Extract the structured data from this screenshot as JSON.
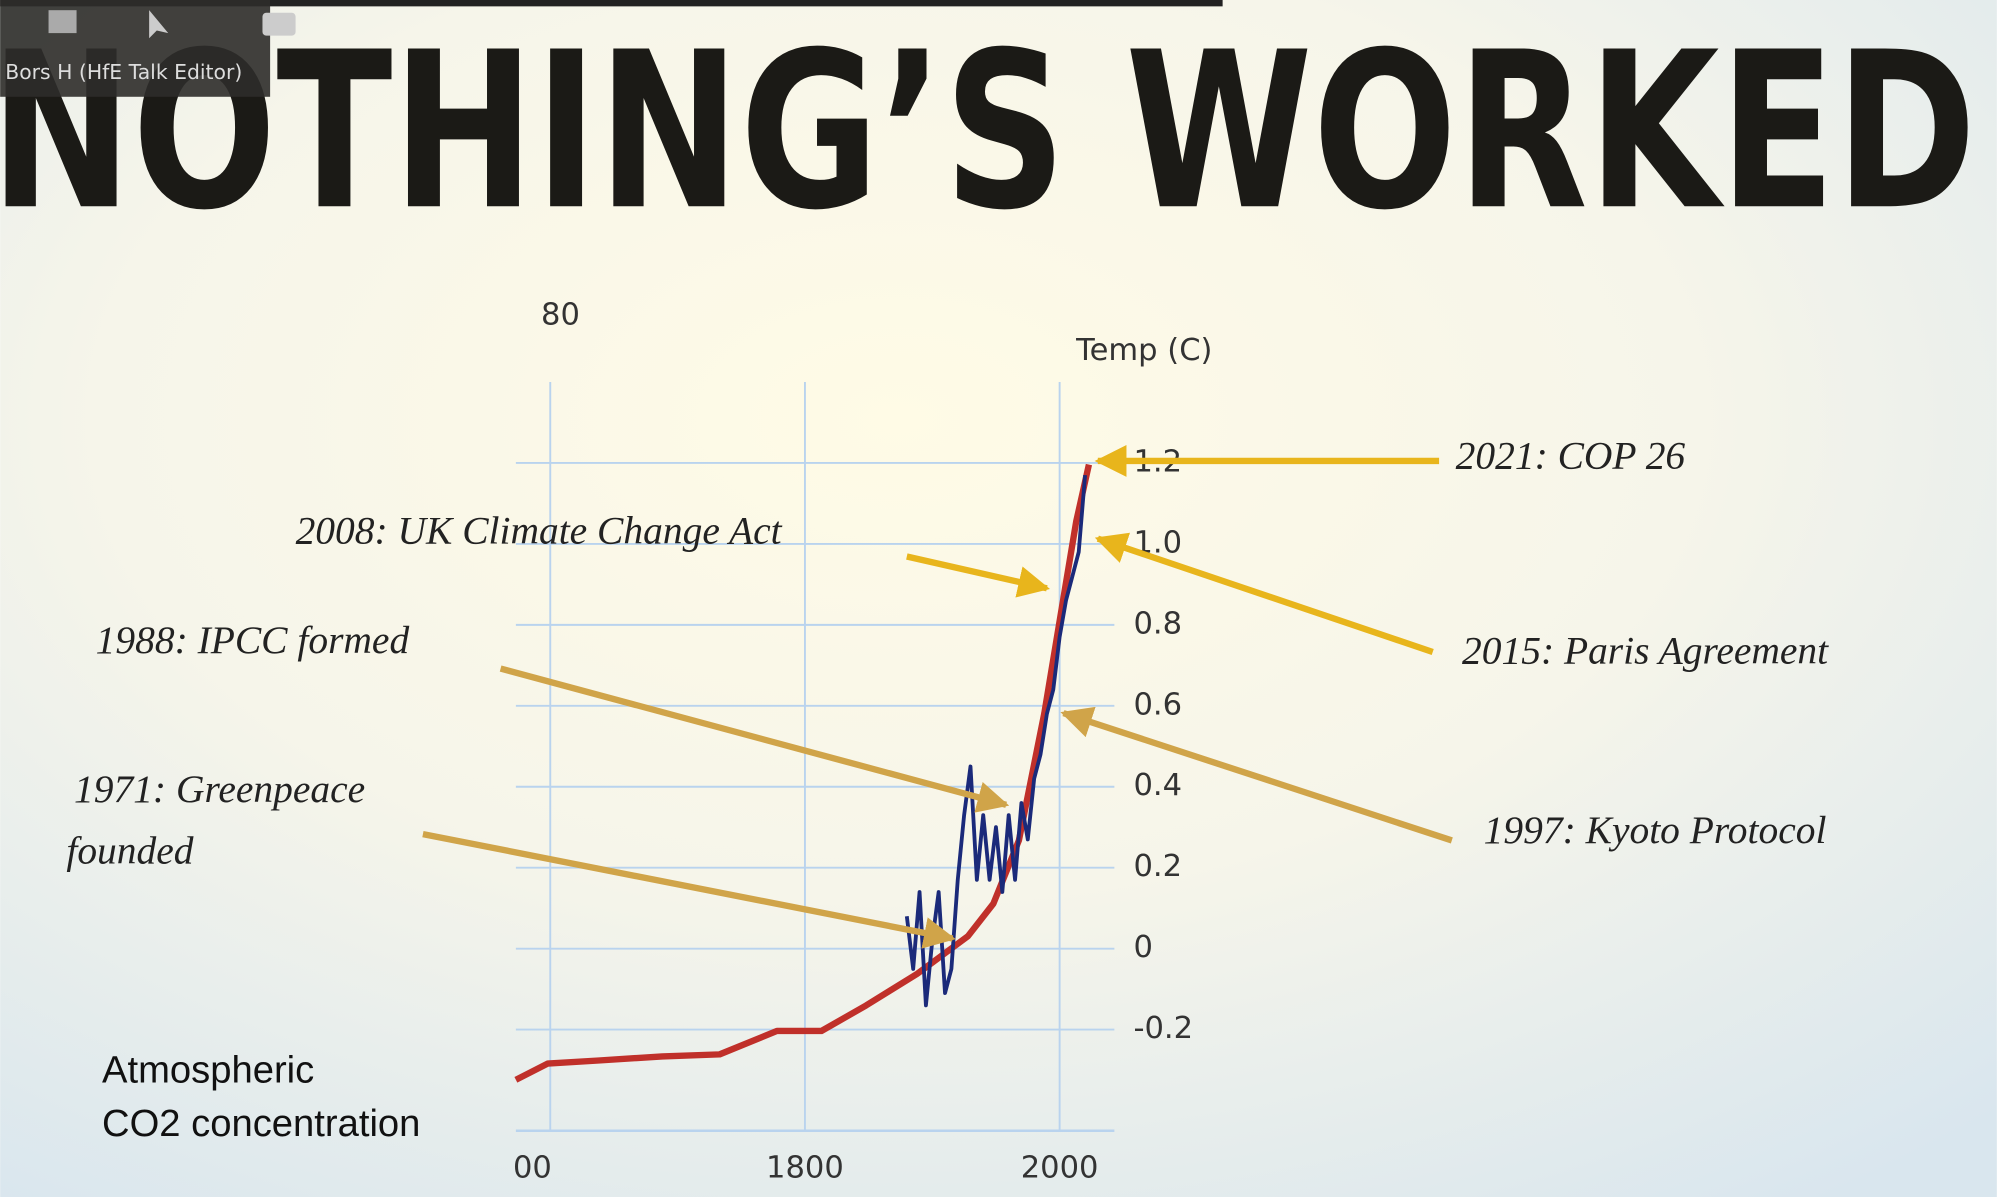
{
  "window_label": "Bors H (HfE Talk Editor)",
  "chart_data": {
    "type": "line",
    "title": "NOTHING’S WORKED",
    "ylabel": [
      "Atmospheric",
      "CO2 concentration"
    ],
    "y2label": "Temp (C)",
    "xlim": [
      1573,
      2043
    ],
    "xticks": [
      {
        "value": 1600,
        "label": "00"
      },
      1800,
      2000
    ],
    "ylim": [
      0,
      80
    ],
    "yticks": [
      80
    ],
    "y2lim": [
      -0.45,
      1.4
    ],
    "y2ticks": [
      -0.2,
      0,
      0.2,
      0.4,
      0.6,
      0.8,
      {
        "value": 1,
        "label": "1.0"
      },
      1.2
    ],
    "grid": true,
    "series": [
      {
        "color": "#c0302a",
        "x": [
          1573,
          1598,
          1638,
          1688,
          1733,
          1778,
          1813,
          1848,
          1888,
          1928,
          1948,
          1968,
          1988,
          2003,
          2013,
          2023
        ],
        "values": [
          5,
          6.6,
          6.9,
          7.3,
          7.5,
          9.8,
          9.8,
          12.3,
          15.4,
          19.1,
          22.3,
          28.5,
          41,
          52.3,
          59.8,
          65.4
        ]
      },
      {
        "color": "#1b2a7a",
        "axis": "y2",
        "x": [
          1880,
          1885,
          1890,
          1895,
          1900,
          1905,
          1910,
          1915,
          1920,
          1925,
          1930,
          1935,
          1940,
          1945,
          1950,
          1955,
          1960,
          1965,
          1970,
          1975,
          1980,
          1985,
          1990,
          1995,
          2000,
          2005,
          2010,
          2015,
          2020
        ],
        "values": [
          0.08,
          -0.05,
          0.14,
          -0.14,
          0.02,
          0.14,
          -0.11,
          -0.05,
          0.17,
          0.33,
          0.45,
          0.17,
          0.33,
          0.17,
          0.3,
          0.14,
          0.33,
          0.17,
          0.36,
          0.27,
          0.42,
          0.48,
          0.58,
          0.64,
          0.77,
          0.86,
          0.92,
          0.98,
          1.17
        ]
      }
    ],
    "annotations": [
      {
        "lines": [
          "2021: COP 26"
        ]
      },
      {
        "lines": [
          "2008: UK Climate Change Act"
        ]
      },
      {
        "lines": [
          "2015: Paris Agreement"
        ]
      },
      {
        "lines": [
          "1988: IPCC formed"
        ]
      },
      {
        "lines": [
          "1971: Greenpeace",
          "founded"
        ]
      },
      {
        "lines": [
          "1997: Kyoto Protocol"
        ]
      }
    ]
  }
}
